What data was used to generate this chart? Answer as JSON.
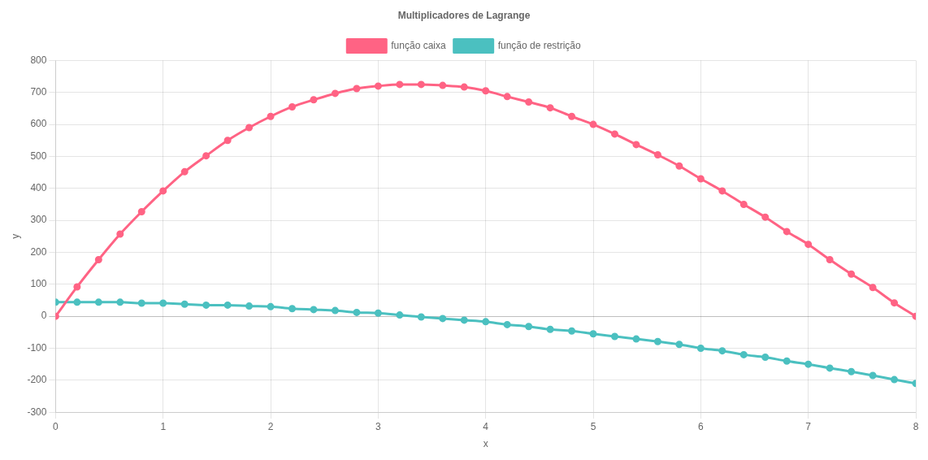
{
  "chart_data": {
    "type": "line",
    "title": "Multiplicadores de Lagrange",
    "xlabel": "x",
    "ylabel": "y",
    "x": [
      0,
      0.2,
      0.4,
      0.6,
      0.8,
      1,
      1.2,
      1.4,
      1.6,
      1.8,
      2,
      2.2,
      2.4,
      2.6,
      2.8,
      3,
      3.2,
      3.4,
      3.6,
      3.8,
      4,
      4.2,
      4.4,
      4.6,
      4.8,
      5,
      5.2,
      5.4,
      5.6,
      5.8,
      6,
      6.2,
      6.4,
      6.6,
      6.8,
      7,
      7.2,
      7.4,
      7.6,
      7.8,
      8
    ],
    "series": [
      {
        "name": "função caixa",
        "color": "#ff6384",
        "values": [
          0,
          92,
          177,
          257,
          327,
          392,
          452,
          502,
          550,
          590,
          625,
          655,
          677,
          697,
          712,
          720,
          725,
          725,
          722,
          717,
          705,
          687,
          670,
          652,
          625,
          600,
          570,
          537,
          505,
          470,
          430,
          392,
          350,
          310,
          265,
          225,
          177,
          132,
          90,
          42,
          0
        ]
      },
      {
        "name": "função de restrição",
        "color": "#4bc0c0",
        "values": [
          44,
          44,
          44,
          44,
          41,
          41,
          38,
          35,
          35,
          32,
          30,
          24,
          21,
          18,
          12,
          10,
          4,
          -2,
          -7,
          -12,
          -17,
          -26,
          -32,
          -41,
          -46,
          -55,
          -63,
          -71,
          -79,
          -88,
          -100,
          -108,
          -120,
          -128,
          -140,
          -150,
          -162,
          -173,
          -185,
          -198,
          -210
        ]
      }
    ],
    "xlim": [
      0,
      8
    ],
    "xticks": [
      0,
      1,
      2,
      3,
      4,
      5,
      6,
      7,
      8
    ],
    "ylim": [
      -300,
      800
    ],
    "yticks": [
      -300,
      -200,
      -100,
      0,
      100,
      200,
      300,
      400,
      500,
      600,
      700,
      800
    ],
    "grid": true,
    "legend": "top",
    "marker": "circle",
    "line_style": "solid"
  }
}
